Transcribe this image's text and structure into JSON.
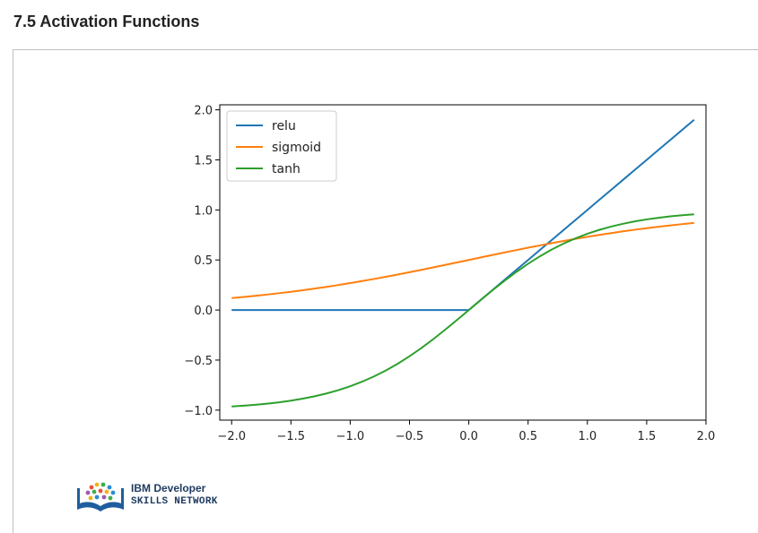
{
  "page": {
    "heading": "7.5 Activation Functions"
  },
  "branding": {
    "line1": "IBM Developer",
    "line2": "SKILLS NETWORK"
  },
  "chart_data": {
    "type": "line",
    "title": "",
    "xlabel": "",
    "ylabel": "",
    "xlim": [
      -2.1,
      2.0
    ],
    "ylim": [
      -1.1,
      2.05
    ],
    "x_ticks": [
      "−2.0",
      "−1.5",
      "−1.0",
      "−0.5",
      "0.0",
      "0.5",
      "1.0",
      "1.5",
      "2.0"
    ],
    "x_tick_values": [
      -2.0,
      -1.5,
      -1.0,
      -0.5,
      0.0,
      0.5,
      1.0,
      1.5,
      2.0
    ],
    "y_ticks": [
      "2.0",
      "1.5",
      "1.0",
      "0.5",
      "0.0",
      "−0.5",
      "−1.0"
    ],
    "y_tick_values": [
      2.0,
      1.5,
      1.0,
      0.5,
      0.0,
      -0.5,
      -1.0
    ],
    "grid": false,
    "legend_position": "top-left",
    "x": [
      -2.0,
      -1.9,
      -1.8,
      -1.7,
      -1.6,
      -1.5,
      -1.4,
      -1.3,
      -1.2,
      -1.1,
      -1.0,
      -0.9,
      -0.8,
      -0.7,
      -0.6,
      -0.5,
      -0.4,
      -0.3,
      -0.2,
      -0.1,
      0.0,
      0.1,
      0.2,
      0.3,
      0.4,
      0.5,
      0.6,
      0.7,
      0.8,
      0.9,
      1.0,
      1.1,
      1.2,
      1.3,
      1.4,
      1.5,
      1.6,
      1.7,
      1.8,
      1.9
    ],
    "series": [
      {
        "name": "relu",
        "color": "#1f77b4",
        "values": [
          0,
          0,
          0,
          0,
          0,
          0,
          0,
          0,
          0,
          0,
          0,
          0,
          0,
          0,
          0,
          0,
          0,
          0,
          0,
          0,
          0,
          0.1,
          0.2,
          0.3,
          0.4,
          0.5,
          0.6,
          0.7,
          0.8,
          0.9,
          1.0,
          1.1,
          1.2,
          1.3,
          1.4,
          1.5,
          1.6,
          1.7,
          1.8,
          1.9
        ]
      },
      {
        "name": "sigmoid",
        "color": "#ff7f0e",
        "values": [
          0.1192,
          0.1301,
          0.1419,
          0.1545,
          0.168,
          0.1824,
          0.1978,
          0.2142,
          0.2315,
          0.2497,
          0.2689,
          0.2891,
          0.31,
          0.3318,
          0.3543,
          0.3775,
          0.4013,
          0.4256,
          0.4502,
          0.475,
          0.5,
          0.525,
          0.5498,
          0.5744,
          0.5987,
          0.6225,
          0.6457,
          0.6682,
          0.69,
          0.7109,
          0.7311,
          0.7503,
          0.7685,
          0.7858,
          0.8022,
          0.8176,
          0.832,
          0.8455,
          0.8581,
          0.8699
        ]
      },
      {
        "name": "tanh",
        "color": "#2ca02c",
        "values": [
          -0.964,
          -0.9562,
          -0.9468,
          -0.9354,
          -0.9217,
          -0.9051,
          -0.8854,
          -0.8617,
          -0.8337,
          -0.8005,
          -0.7616,
          -0.7163,
          -0.664,
          -0.6044,
          -0.537,
          -0.4621,
          -0.3799,
          -0.2913,
          -0.1974,
          -0.0997,
          0.0,
          0.0997,
          0.1974,
          0.2913,
          0.3799,
          0.4621,
          0.537,
          0.6044,
          0.664,
          0.7163,
          0.7616,
          0.8005,
          0.8337,
          0.8617,
          0.8854,
          0.9051,
          0.9217,
          0.9354,
          0.9468,
          0.9562
        ]
      }
    ]
  }
}
